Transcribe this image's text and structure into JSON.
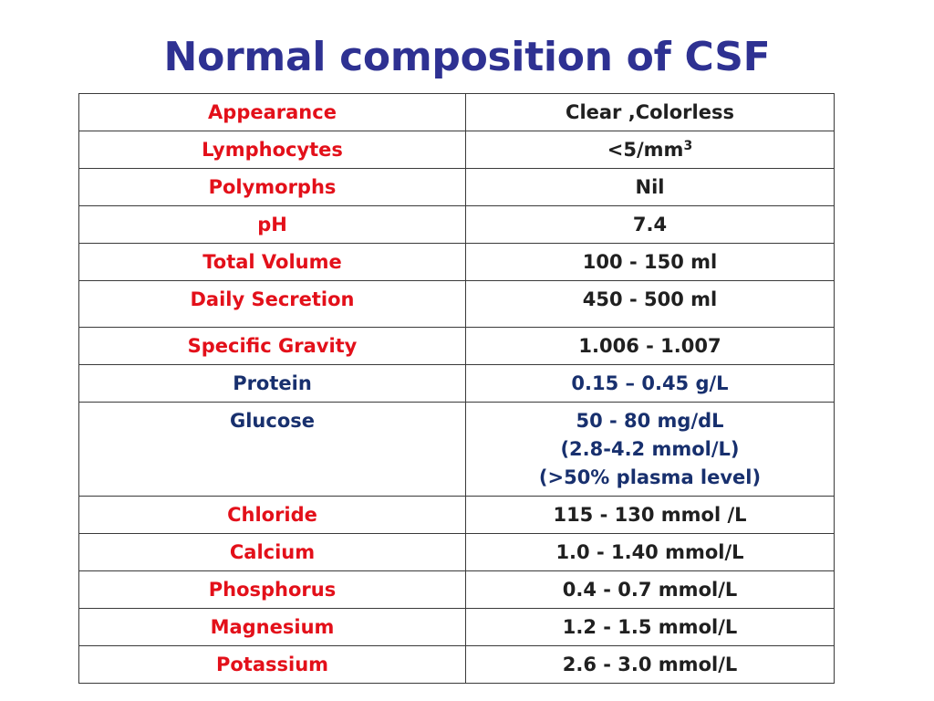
{
  "title": "Normal composition of CSF",
  "colors": {
    "title": "#2e3192",
    "param_red": "#e3101a",
    "value_black": "#202020",
    "dark_blue": "#18306e",
    "border": "#3a3a3a"
  },
  "rows": [
    {
      "parameter": "Appearance",
      "value": [
        "Clear ,Colorless"
      ]
    },
    {
      "parameter": "Lymphocytes",
      "value": [
        "<5/mm"
      ],
      "value_superscript": "3"
    },
    {
      "parameter": "Polymorphs",
      "value": [
        "Nil"
      ]
    },
    {
      "parameter": "pH",
      "value": [
        "7.4"
      ]
    },
    {
      "parameter": "Total Volume",
      "value": [
        "100 - 150 ml"
      ]
    },
    {
      "parameter": "Daily Secretion",
      "value": [
        "450 - 500 ml"
      ]
    },
    {
      "parameter": "Specific Gravity",
      "value": [
        "1.006 - 1.007"
      ]
    },
    {
      "parameter": "Protein",
      "value": [
        "0.15 – 0.45 g/L"
      ]
    },
    {
      "parameter": "Glucose",
      "value": [
        "50 - 80  mg/dL",
        "(2.8-4.2 mmol/L)",
        "(>50% plasma level)"
      ]
    },
    {
      "parameter": "Chloride",
      "value": [
        "115 - 130 mmol /L"
      ]
    },
    {
      "parameter": "Calcium",
      "value": [
        "1.0 - 1.40 mmol/L"
      ]
    },
    {
      "parameter": "Phosphorus",
      "value": [
        "0.4 - 0.7 mmol/L"
      ]
    },
    {
      "parameter": "Magnesium",
      "value": [
        "1.2 - 1.5 mmol/L"
      ]
    },
    {
      "parameter": "Potassium",
      "value": [
        "2.6 - 3.0 mmol/L"
      ]
    }
  ]
}
